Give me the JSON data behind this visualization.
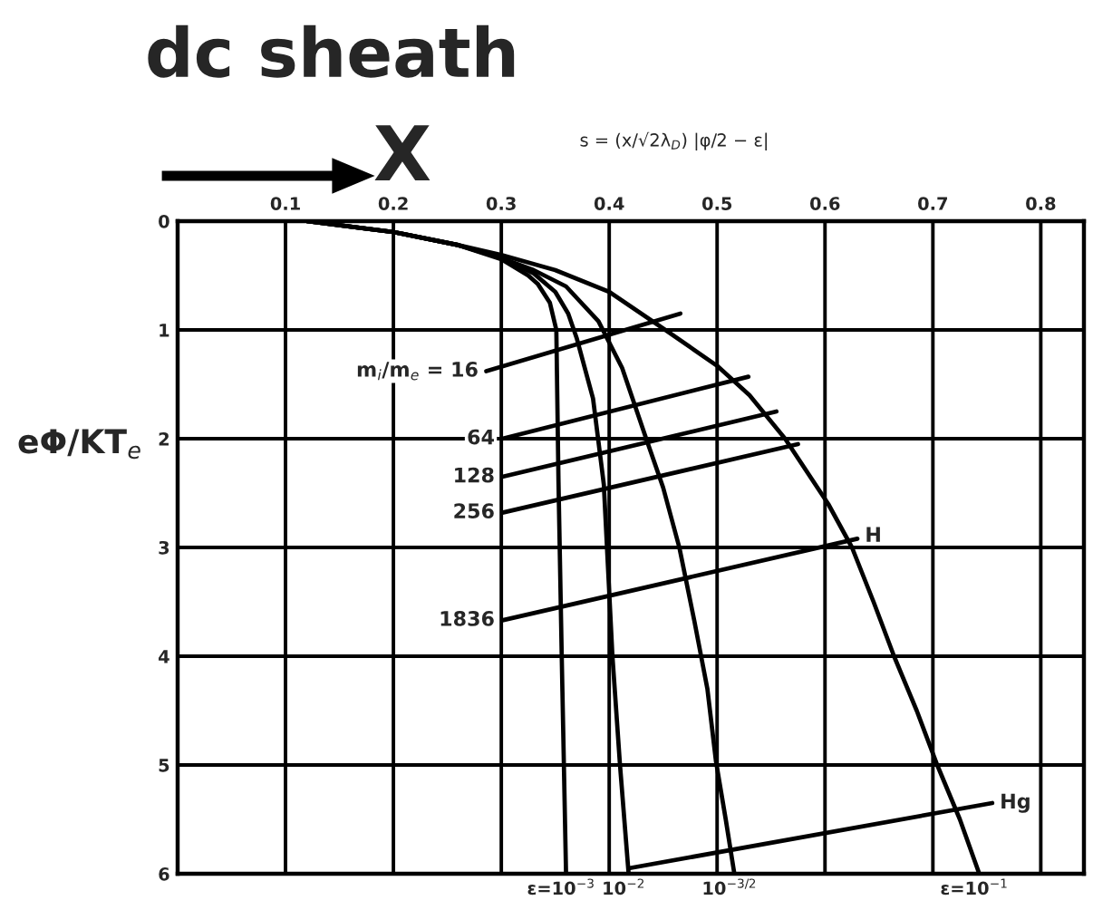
{
  "chart_data": {
    "type": "line",
    "title": "dc sheath",
    "ylabel": "eΦ/KT$_{e}$",
    "annotations": [
      "X",
      "s = (x/√2λ$_{D}$) |φ/2 − ε|",
      {
        "text": "H",
        "x": 0.63,
        "y": 2.92
      }
    ],
    "xlim": [
      0,
      0.84
    ],
    "ylim": [
      6,
      0
    ],
    "xticks": [
      {
        "value": 0,
        "label": null
      },
      0.1,
      0.2,
      0.3,
      0.4,
      0.5,
      0.6,
      0.7,
      0.8
    ],
    "yticks": [
      0,
      1,
      2,
      3,
      4,
      5,
      6
    ],
    "grid": true,
    "line_style": "solid",
    "series": [
      {
        "name": "ε=10$^{−3}$",
        "color": "#000000",
        "x": [
          0.12,
          0.2,
          0.26,
          0.3,
          0.325,
          0.334,
          0.345,
          0.351,
          0.353,
          0.356,
          0.36
        ],
        "values": [
          0,
          0.1,
          0.22,
          0.35,
          0.5,
          0.58,
          0.75,
          1.0,
          2.4,
          4.0,
          6
        ]
      },
      {
        "name": "10$^{−2}$",
        "color": "#000000",
        "x": [
          0.12,
          0.2,
          0.26,
          0.3,
          0.33,
          0.35,
          0.362,
          0.37,
          0.385,
          0.395,
          0.403,
          0.41,
          0.418
        ],
        "values": [
          0,
          0.1,
          0.22,
          0.34,
          0.48,
          0.65,
          0.85,
          1.08,
          1.63,
          2.42,
          4.0,
          5.0,
          6
        ]
      },
      {
        "name": "10$^{−3/2}$",
        "color": "#000000",
        "x": [
          0.12,
          0.2,
          0.26,
          0.3,
          0.33,
          0.36,
          0.39,
          0.412,
          0.435,
          0.45,
          0.465,
          0.479,
          0.491,
          0.499,
          0.508,
          0.516
        ],
        "values": [
          0,
          0.1,
          0.22,
          0.34,
          0.45,
          0.6,
          0.92,
          1.35,
          2.02,
          2.45,
          3.0,
          3.68,
          4.3,
          4.97,
          5.5,
          6
        ]
      },
      {
        "name": "ε=10$^{−1}$",
        "color": "#000000",
        "x": [
          0.12,
          0.2,
          0.26,
          0.3,
          0.35,
          0.4,
          0.452,
          0.5,
          0.53,
          0.563,
          0.603,
          0.625,
          0.645,
          0.664,
          0.685,
          0.704,
          0.725,
          0.743
        ],
        "values": [
          0,
          0.1,
          0.22,
          0.31,
          0.45,
          0.65,
          1.0,
          1.33,
          1.6,
          2.0,
          2.6,
          3.0,
          3.5,
          4.0,
          4.5,
          5.0,
          5.5,
          6
        ]
      },
      {
        "name": "m$_{i}$/m$_{e}$ = 16",
        "color": "#000000",
        "x": [
          0.286,
          0.466
        ],
        "values": [
          1.38,
          0.85
        ]
      },
      {
        "name": "64",
        "color": "#000000",
        "x": [
          0.301,
          0.529
        ],
        "values": [
          2.0,
          1.43
        ]
      },
      {
        "name": "128",
        "color": "#000000",
        "x": [
          0.301,
          0.555
        ],
        "values": [
          2.35,
          1.75
        ]
      },
      {
        "name": "256",
        "color": "#000000",
        "x": [
          0.301,
          0.575
        ],
        "values": [
          2.68,
          2.05
        ]
      },
      {
        "name": "1836",
        "color": "#000000",
        "x": [
          0.301,
          0.63
        ],
        "values": [
          3.67,
          2.92
        ]
      },
      {
        "name": "Hg",
        "color": "#000000",
        "x": [
          0.755,
          0.418
        ],
        "values": [
          5.35,
          5.95
        ]
      }
    ]
  }
}
